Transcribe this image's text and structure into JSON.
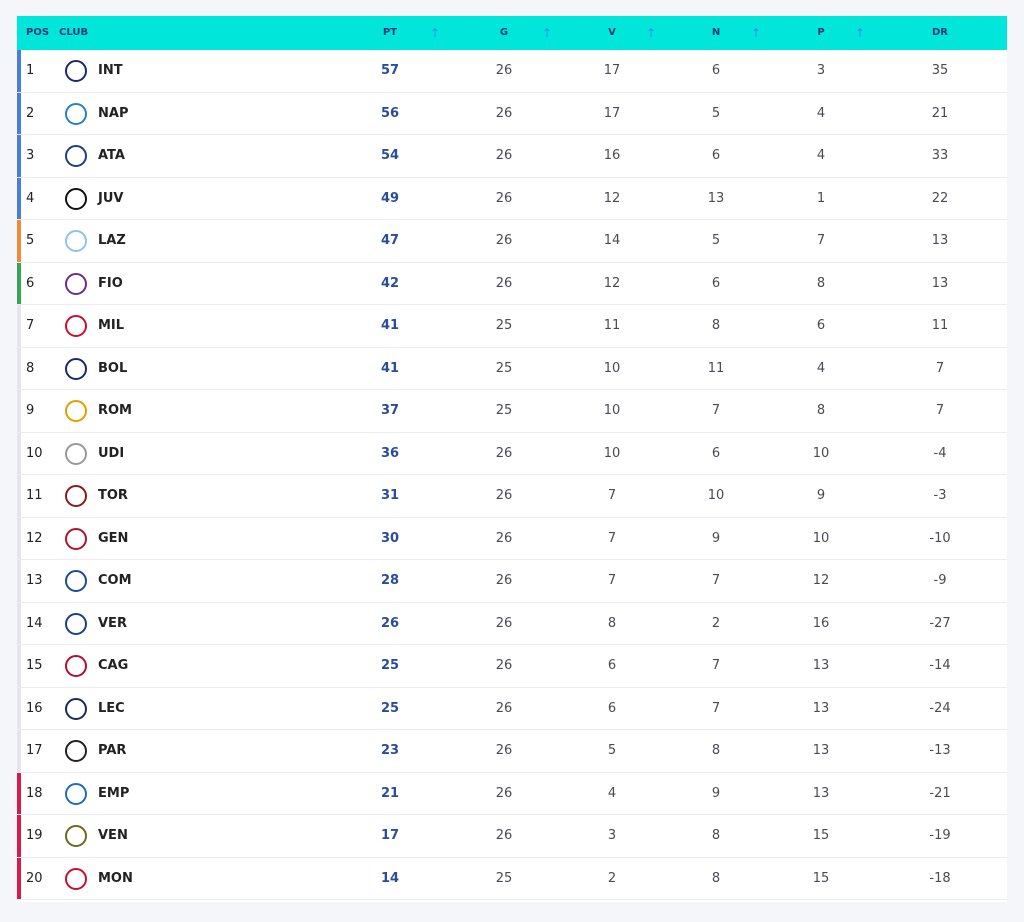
{
  "table": {
    "columns": [
      "POS",
      "CLUB",
      "PT",
      "G",
      "V",
      "N",
      "P",
      "DR"
    ],
    "rows": [
      [
        1,
        "INT",
        57,
        26,
        17,
        6,
        3,
        35
      ],
      [
        2,
        "NAP",
        56,
        26,
        17,
        5,
        4,
        21
      ],
      [
        3,
        "ATA",
        54,
        26,
        16,
        6,
        4,
        33
      ],
      [
        4,
        "JUV",
        49,
        26,
        12,
        13,
        1,
        22
      ],
      [
        5,
        "LAZ",
        47,
        26,
        14,
        5,
        7,
        13
      ],
      [
        6,
        "FIO",
        42,
        26,
        12,
        6,
        8,
        13
      ],
      [
        7,
        "MIL",
        41,
        25,
        11,
        8,
        6,
        11
      ],
      [
        8,
        "BOL",
        41,
        25,
        10,
        11,
        4,
        7
      ],
      [
        9,
        "ROM",
        37,
        25,
        10,
        7,
        8,
        7
      ],
      [
        10,
        "UDI",
        36,
        26,
        10,
        6,
        10,
        -4
      ],
      [
        11,
        "TOR",
        31,
        26,
        7,
        10,
        9,
        -3
      ],
      [
        12,
        "GEN",
        30,
        26,
        7,
        9,
        10,
        -10
      ],
      [
        13,
        "COM",
        28,
        26,
        7,
        7,
        12,
        -9
      ],
      [
        14,
        "VER",
        26,
        26,
        8,
        2,
        16,
        -27
      ],
      [
        15,
        "CAG",
        25,
        26,
        6,
        7,
        13,
        -14
      ],
      [
        16,
        "LEC",
        25,
        26,
        6,
        7,
        13,
        -24
      ],
      [
        17,
        "PAR",
        23,
        26,
        5,
        8,
        13,
        -13
      ],
      [
        18,
        "EMP",
        21,
        26,
        4,
        9,
        13,
        -21
      ],
      [
        19,
        "VEN",
        17,
        26,
        3,
        8,
        15,
        -19
      ],
      [
        20,
        "MON",
        14,
        25,
        2,
        8,
        15,
        -18
      ]
    ],
    "row_colors": [
      "#4a7fd6",
      "#4a7fd6",
      "#4a7fd6",
      "#4a7fd6",
      "#f08a3a",
      "#3aa35a",
      "#e4e4ea",
      "#e4e4ea",
      "#e4e4ea",
      "#e4e4ea",
      "#e4e4ea",
      "#e4e4ea",
      "#e4e4ea",
      "#e4e4ea",
      "#e4e4ea",
      "#e4e4ea",
      "#e4e4ea",
      "#d81b4a",
      "#d81b4a",
      "#d81b4a"
    ]
  }
}
